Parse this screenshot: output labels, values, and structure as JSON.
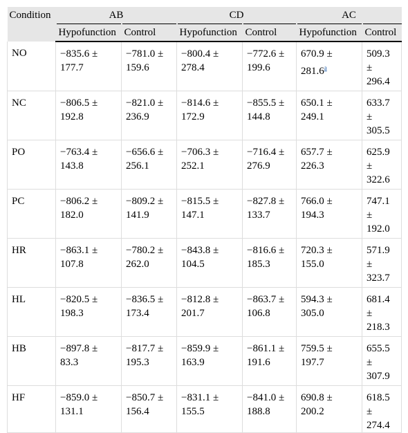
{
  "table": {
    "header": {
      "first": "Condition",
      "groups": [
        "AB",
        "CD",
        "AC"
      ],
      "sub": [
        "Hypofunction",
        "Control",
        "Hypofunction",
        "Control",
        "Hypofunction",
        "Control"
      ]
    },
    "rows": [
      [
        "NO",
        "−835.6 ± 177.7",
        "−781.0 ± 159.6",
        "−800.4 ± 278.4",
        "−772.6 ± 199.6",
        [
          "670.9 ± 281.6",
          "a"
        ],
        "509.3 ± 296.4"
      ],
      [
        "NC",
        "−806.5 ± 192.8",
        "−821.0 ± 236.9",
        "−814.6 ± 172.9",
        "−855.5 ± 144.8",
        "650.1 ± 249.1",
        "633.7 ± 305.5"
      ],
      [
        "PO",
        "−763.4 ± 143.8",
        "−656.6 ± 256.1",
        "−706.3 ± 252.1",
        "−716.4 ± 276.9",
        "657.7 ± 226.3",
        "625.9 ± 322.6"
      ],
      [
        "PC",
        "−806.2 ± 182.0",
        "−809.2 ± 141.9",
        "−815.5 ± 147.1",
        "−827.8 ± 133.7",
        "766.0 ± 194.3",
        "747.1 ± 192.0"
      ],
      [
        "HR",
        "−863.1 ± 107.8",
        "−780.2 ± 262.0",
        "−843.8 ± 104.5",
        "−816.6 ± 185.3",
        "720.3 ± 155.0",
        "571.9 ± 323.7"
      ],
      [
        "HL",
        "−820.5 ± 198.3",
        "−836.5 ± 173.4",
        "−812.8 ± 201.7",
        "−863.7 ± 106.8",
        "594.3 ± 305.0",
        "681.4 ± 218.3"
      ],
      [
        "HB",
        "−897.8 ± 83.3",
        "−817.7 ± 195.3",
        "−859.9 ± 163.9",
        "−861.1 ± 191.6",
        "759.5 ± 197.7",
        "655.5 ± 307.9"
      ],
      [
        "HF",
        "−859.0 ± 131.1",
        "−850.7 ± 156.4",
        "−831.1 ± 155.5",
        "−841.0 ± 188.8",
        "690.8 ± 200.2",
        "618.5 ± 274.4"
      ]
    ]
  }
}
